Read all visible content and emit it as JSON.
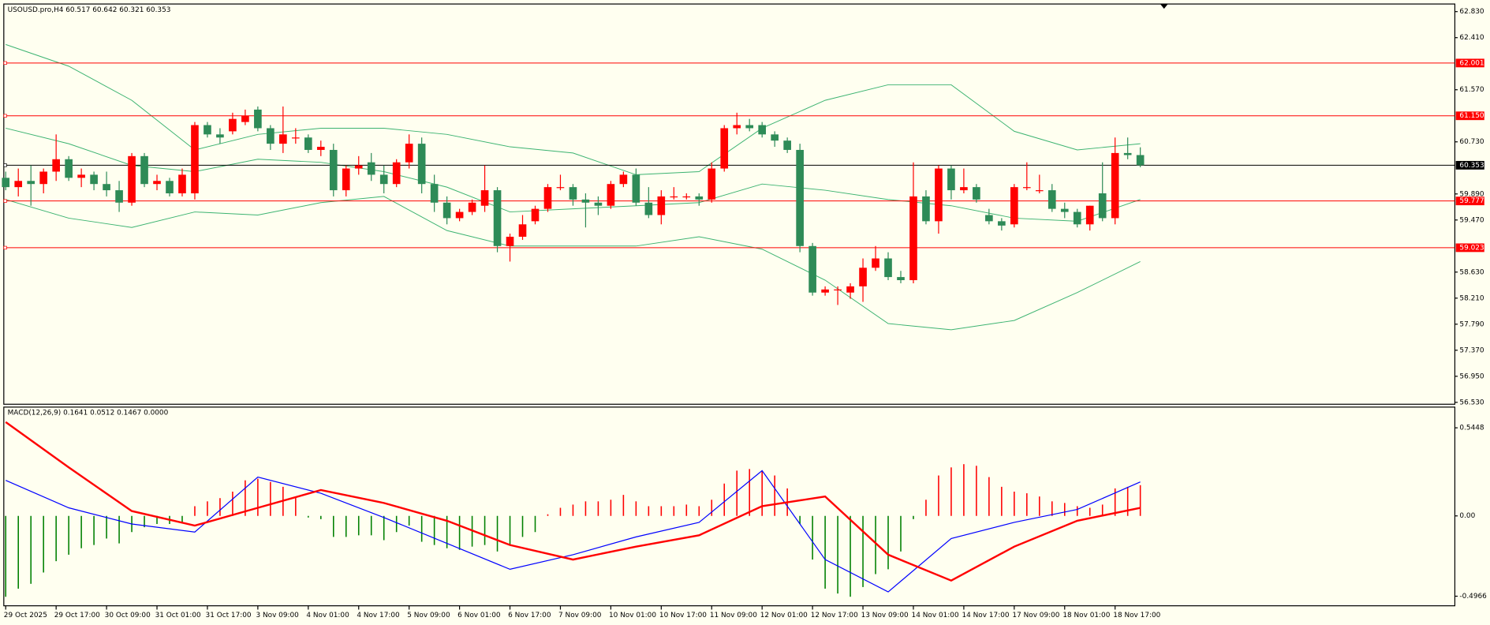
{
  "chart_data": [
    {
      "type": "candlestick",
      "title": "USOUSD.pro,H4  60.517 60.642 60.321 60.353",
      "categories": [
        "29 Oct 2025",
        null,
        null,
        null,
        "29 Oct 17:00",
        null,
        null,
        null,
        "30 Oct 09:00",
        null,
        null,
        null,
        "31 Oct 01:00",
        null,
        null,
        null,
        "31 Oct 17:00",
        null,
        null,
        null,
        "3 Nov 09:00",
        null,
        null,
        null,
        "4 Nov 01:00",
        null,
        null,
        null,
        "4 Nov 17:00",
        null,
        null,
        null,
        "5 Nov 09:00",
        null,
        null,
        null,
        "6 Nov 01:00",
        null,
        null,
        null,
        "6 Nov 17:00",
        null,
        null,
        null,
        "7 Nov 09:00",
        null,
        null,
        null,
        "10 Nov 01:00",
        null,
        null,
        null,
        "10 Nov 17:00",
        null,
        null,
        null,
        "11 Nov 09:00",
        null,
        null,
        null,
        "12 Nov 01:00",
        null,
        null,
        null,
        "12 Nov 17:00",
        null,
        null,
        null,
        "13 Nov 09:00",
        null,
        null,
        null,
        "14 Nov 01:00",
        null,
        null,
        null,
        "14 Nov 17:00",
        null,
        null,
        null,
        "17 Nov 09:00",
        null,
        null,
        null,
        "18 Nov 01:00",
        null,
        null,
        null,
        "18 Nov 17:00",
        null,
        null
      ],
      "ohlc": [
        [
          60.15,
          60.25,
          59.95,
          60.0
        ],
        [
          60.0,
          60.3,
          59.85,
          60.1
        ],
        [
          60.1,
          60.35,
          59.7,
          60.05
        ],
        [
          60.05,
          60.3,
          59.9,
          60.25
        ],
        [
          60.25,
          60.85,
          60.1,
          60.45
        ],
        [
          60.45,
          60.5,
          60.1,
          60.15
        ],
        [
          60.15,
          60.3,
          60.0,
          60.2
        ],
        [
          60.2,
          60.25,
          59.95,
          60.05
        ],
        [
          60.05,
          60.25,
          59.85,
          59.95
        ],
        [
          59.95,
          60.1,
          59.6,
          59.75
        ],
        [
          59.75,
          60.55,
          59.7,
          60.5
        ],
        [
          60.5,
          60.55,
          60.0,
          60.05
        ],
        [
          60.05,
          60.2,
          59.95,
          60.1
        ],
        [
          60.1,
          60.15,
          59.85,
          59.9
        ],
        [
          59.9,
          60.3,
          59.85,
          60.2
        ],
        [
          59.9,
          61.05,
          59.8,
          61.0
        ],
        [
          61.0,
          61.05,
          60.8,
          60.85
        ],
        [
          60.85,
          60.95,
          60.7,
          60.8
        ],
        [
          60.9,
          61.2,
          60.85,
          61.1
        ],
        [
          61.05,
          61.25,
          61.0,
          61.15
        ],
        [
          61.25,
          61.3,
          60.9,
          60.95
        ],
        [
          60.95,
          61.0,
          60.6,
          60.7
        ],
        [
          60.7,
          61.3,
          60.55,
          60.85
        ],
        [
          60.8,
          60.95,
          60.7,
          60.8
        ],
        [
          60.8,
          60.85,
          60.55,
          60.6
        ],
        [
          60.6,
          60.75,
          60.5,
          60.65
        ],
        [
          60.6,
          60.7,
          59.85,
          59.95
        ],
        [
          59.95,
          60.35,
          59.85,
          60.3
        ],
        [
          60.3,
          60.5,
          60.2,
          60.35
        ],
        [
          60.4,
          60.55,
          60.1,
          60.2
        ],
        [
          60.2,
          60.35,
          59.9,
          60.05
        ],
        [
          60.05,
          60.45,
          60.0,
          60.4
        ],
        [
          60.4,
          60.85,
          60.3,
          60.7
        ],
        [
          60.7,
          60.8,
          59.9,
          60.05
        ],
        [
          60.05,
          60.2,
          59.6,
          59.75
        ],
        [
          59.75,
          59.85,
          59.4,
          59.5
        ],
        [
          59.5,
          59.65,
          59.45,
          59.6
        ],
        [
          59.6,
          59.8,
          59.55,
          59.75
        ],
        [
          59.7,
          60.35,
          59.6,
          59.95
        ],
        [
          59.95,
          60.0,
          58.95,
          59.05
        ],
        [
          59.05,
          59.25,
          58.8,
          59.2
        ],
        [
          59.2,
          59.55,
          59.15,
          59.4
        ],
        [
          59.45,
          59.7,
          59.4,
          59.65
        ],
        [
          59.65,
          60.05,
          59.6,
          60.0
        ],
        [
          60.0,
          60.2,
          59.95,
          60.0
        ],
        [
          60.0,
          60.05,
          59.7,
          59.8
        ],
        [
          59.8,
          59.9,
          59.35,
          59.75
        ],
        [
          59.75,
          59.85,
          59.55,
          59.7
        ],
        [
          59.7,
          60.1,
          59.65,
          60.05
        ],
        [
          60.05,
          60.25,
          60.0,
          60.2
        ],
        [
          60.2,
          60.3,
          59.7,
          59.75
        ],
        [
          59.75,
          60.0,
          59.5,
          59.55
        ],
        [
          59.55,
          59.95,
          59.4,
          59.85
        ],
        [
          59.85,
          60.0,
          59.8,
          59.85
        ],
        [
          59.85,
          59.9,
          59.8,
          59.85
        ],
        [
          59.85,
          59.9,
          59.7,
          59.8
        ],
        [
          59.8,
          60.4,
          59.75,
          60.3
        ],
        [
          60.3,
          61.0,
          60.25,
          60.95
        ],
        [
          60.95,
          61.2,
          60.85,
          61.0
        ],
        [
          61.0,
          61.1,
          60.9,
          60.95
        ],
        [
          61.0,
          61.05,
          60.8,
          60.85
        ],
        [
          60.85,
          60.9,
          60.65,
          60.75
        ],
        [
          60.75,
          60.8,
          60.55,
          60.6
        ],
        [
          60.6,
          60.7,
          58.95,
          59.05
        ],
        [
          59.05,
          59.1,
          58.25,
          58.3
        ],
        [
          58.3,
          58.4,
          58.25,
          58.35
        ],
        [
          58.35,
          58.4,
          58.1,
          58.35
        ],
        [
          58.3,
          58.45,
          58.2,
          58.4
        ],
        [
          58.4,
          58.85,
          58.15,
          58.7
        ],
        [
          58.7,
          59.05,
          58.65,
          58.85
        ],
        [
          58.85,
          58.95,
          58.5,
          58.55
        ],
        [
          58.55,
          58.65,
          58.45,
          58.5
        ],
        [
          58.5,
          60.4,
          58.45,
          59.85
        ],
        [
          59.85,
          59.95,
          59.4,
          59.45
        ],
        [
          59.45,
          60.35,
          59.25,
          60.3
        ],
        [
          60.3,
          60.35,
          59.8,
          59.95
        ],
        [
          59.95,
          60.3,
          59.9,
          60.0
        ],
        [
          60.0,
          60.05,
          59.75,
          59.8
        ],
        [
          59.55,
          59.65,
          59.4,
          59.45
        ],
        [
          59.45,
          59.5,
          59.3,
          59.38
        ],
        [
          59.4,
          60.05,
          59.35,
          60.0
        ],
        [
          60.0,
          60.4,
          59.95,
          60.0
        ],
        [
          59.95,
          60.2,
          59.9,
          59.95
        ],
        [
          59.95,
          60.05,
          59.6,
          59.65
        ],
        [
          59.65,
          59.75,
          59.5,
          59.6
        ],
        [
          59.6,
          59.65,
          59.35,
          59.4
        ],
        [
          59.4,
          59.7,
          59.3,
          59.7
        ],
        [
          59.9,
          60.4,
          59.45,
          59.5
        ],
        [
          59.5,
          60.8,
          59.4,
          60.55
        ],
        [
          60.55,
          60.8,
          60.45,
          60.517
        ],
        [
          60.517,
          60.642,
          60.321,
          60.353
        ]
      ],
      "up_color": "#ff0000",
      "down_color": "#2e8b57",
      "bands": [
        {
          "color": "#3cb371",
          "x": [
            0,
            5,
            10,
            15,
            20,
            25,
            30,
            35,
            40,
            45,
            50,
            55,
            60,
            65,
            70,
            75,
            80,
            85,
            90
          ],
          "values": [
            62.3,
            61.95,
            61.4,
            60.6,
            60.85,
            60.95,
            60.95,
            60.85,
            60.65,
            60.55,
            60.2,
            60.25,
            60.95,
            61.4,
            61.65,
            61.65,
            60.9,
            60.6,
            60.7
          ]
        },
        {
          "color": "#3cb371",
          "x": [
            0,
            5,
            10,
            15,
            20,
            25,
            30,
            35,
            40,
            45,
            50,
            55,
            60,
            65,
            70,
            75,
            80,
            85,
            90
          ],
          "values": [
            60.95,
            60.7,
            60.35,
            60.25,
            60.45,
            60.4,
            60.25,
            60.0,
            59.6,
            59.65,
            59.7,
            59.75,
            60.05,
            59.95,
            59.8,
            59.7,
            59.5,
            59.45,
            59.8
          ]
        },
        {
          "color": "#3cb371",
          "x": [
            0,
            5,
            10,
            15,
            20,
            25,
            30,
            35,
            40,
            45,
            50,
            55,
            60,
            65,
            70,
            75,
            80,
            85,
            90
          ],
          "values": [
            59.8,
            59.5,
            59.35,
            59.6,
            59.55,
            59.75,
            59.85,
            59.3,
            59.05,
            59.05,
            59.05,
            59.2,
            59.0,
            58.5,
            57.8,
            57.7,
            57.85,
            58.3,
            58.8
          ]
        }
      ],
      "levels": [
        {
          "value": 62.001,
          "label": "62.001",
          "color": "#ff0000"
        },
        {
          "value": 61.15,
          "label": "61.150",
          "color": "#ff0000"
        },
        {
          "value": 60.353,
          "label": "60.353",
          "color": "#000000"
        },
        {
          "value": 59.777,
          "label": "59.777",
          "color": "#ff0000"
        },
        {
          "value": 59.023,
          "label": "59.023",
          "color": "#ff0000"
        }
      ],
      "ylim": [
        56.53,
        62.83
      ],
      "yticks": [
        {
          "value": 62.83,
          "label": "62.830"
        },
        {
          "value": 62.41,
          "label": "62.410"
        },
        {
          "value": 61.57,
          "label": "61.570"
        },
        {
          "value": 60.73,
          "label": "60.730"
        },
        {
          "value": 59.89,
          "label": "59.890"
        },
        {
          "value": 59.47,
          "label": "59.470"
        },
        {
          "value": 58.63,
          "label": "58.630"
        },
        {
          "value": 58.21,
          "label": "58.210"
        },
        {
          "value": 57.79,
          "label": "57.790"
        },
        {
          "value": 57.37,
          "label": "57.370"
        },
        {
          "value": 56.95,
          "label": "56.950"
        },
        {
          "value": 56.53,
          "label": "56.530"
        }
      ]
    },
    {
      "type": "macd",
      "title": "MACD(12,26,9) 0.1641 0.0512 0.1467 0.0000",
      "histogram": {
        "up_color": "#ff0000",
        "down_color": "#008000",
        "values": [
          -0.5,
          -0.45,
          -0.42,
          -0.35,
          -0.28,
          -0.24,
          -0.2,
          -0.18,
          -0.14,
          -0.17,
          -0.1,
          -0.07,
          -0.05,
          -0.05,
          -0.04,
          0.06,
          0.09,
          0.11,
          0.15,
          0.22,
          0.23,
          0.21,
          0.18,
          0.12,
          -0.01,
          -0.02,
          -0.13,
          -0.13,
          -0.12,
          -0.12,
          -0.15,
          -0.1,
          -0.06,
          -0.16,
          -0.18,
          -0.2,
          -0.21,
          -0.19,
          -0.18,
          -0.22,
          -0.18,
          -0.13,
          -0.1,
          0.01,
          0.05,
          0.07,
          0.09,
          0.09,
          0.1,
          0.13,
          0.09,
          0.06,
          0.06,
          0.06,
          0.07,
          0.06,
          0.1,
          0.2,
          0.28,
          0.29,
          0.28,
          0.25,
          0.17,
          -0.05,
          -0.27,
          -0.45,
          -0.48,
          -0.5,
          -0.44,
          -0.36,
          -0.33,
          -0.22,
          -0.02,
          0.1,
          0.25,
          0.3,
          0.32,
          0.31,
          0.24,
          0.18,
          0.15,
          0.14,
          0.12,
          0.09,
          0.08,
          0.06,
          0.05,
          0.07,
          0.17,
          0.18,
          0.19
        ]
      },
      "series": [
        {
          "color": "#0000ff",
          "width": 1,
          "x": [
            0,
            5,
            10,
            15,
            20,
            25,
            30,
            35,
            40,
            45,
            50,
            55,
            60,
            65,
            70,
            75,
            80,
            85,
            90
          ],
          "values": [
            0.22,
            0.05,
            -0.05,
            -0.1,
            0.24,
            0.14,
            -0.01,
            -0.17,
            -0.33,
            -0.24,
            -0.13,
            -0.04,
            0.28,
            -0.27,
            -0.47,
            -0.14,
            -0.04,
            0.04,
            0.21
          ]
        },
        {
          "color": "#ff0000",
          "width": 2,
          "x": [
            0,
            5,
            10,
            15,
            20,
            25,
            30,
            35,
            40,
            45,
            50,
            55,
            60,
            65,
            70,
            75,
            80,
            85,
            90
          ],
          "values": [
            0.58,
            0.3,
            0.03,
            -0.06,
            0.05,
            0.16,
            0.08,
            -0.03,
            -0.18,
            -0.27,
            -0.19,
            -0.12,
            0.06,
            0.12,
            -0.24,
            -0.4,
            -0.19,
            -0.03,
            0.05
          ]
        }
      ],
      "ylim": [
        -0.55,
        0.62
      ],
      "yticks": [
        0.5448,
        {
          "value": 0,
          "label": "0.00"
        },
        -0.4966
      ]
    }
  ]
}
